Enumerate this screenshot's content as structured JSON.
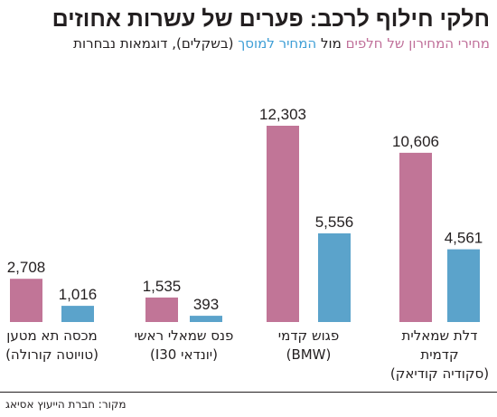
{
  "header": {
    "title": "חלקי חילוף לרכב: פערים של עשרות אחוזים",
    "subtitle_series_a": "מחירי המחירון של חלפים",
    "subtitle_connector": "מול",
    "subtitle_series_b": "המחיר למוסך",
    "subtitle_rest": "(בשקלים), דוגמאות נבחרות"
  },
  "colors": {
    "series_a": "#c17597",
    "series_b": "#5ba3cb",
    "text": "#231f20"
  },
  "chart_data": {
    "type": "bar",
    "title": "חלקי חילוף לרכב: פערים של עשרות אחוזים",
    "categories": [
      [
        "מכסה תא מטען",
        "(טויוטה קורולה)"
      ],
      [
        "פנס שמאלי ראשי",
        "(יונדאי I30)"
      ],
      [
        "פגוש קדמי",
        "(BMW)"
      ],
      [
        "דלת שמאלית",
        "קדמית",
        "(סקודיה קודיאק)"
      ]
    ],
    "series": [
      {
        "name": "מחירי המחירון של חלפים",
        "values": [
          2708,
          1535,
          12303,
          10606
        ]
      },
      {
        "name": "המחיר למוסך",
        "values": [
          1016,
          393,
          5556,
          4561
        ]
      }
    ],
    "value_labels": [
      [
        "2,708",
        "1,535",
        "12,303",
        "10,606"
      ],
      [
        "1,016",
        "393",
        "5,556",
        "4,561"
      ]
    ],
    "xlabel": "",
    "ylabel": "",
    "ylim": [
      0,
      12303
    ],
    "grid": false,
    "legend": "subtitle"
  },
  "footer": {
    "source": "מקור: חברת הייעוץ אסיאג"
  }
}
